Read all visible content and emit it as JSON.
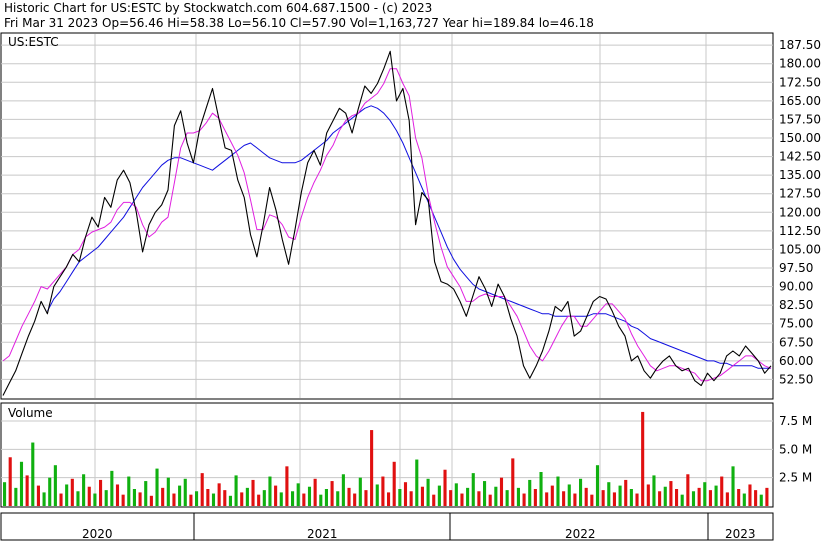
{
  "header": {
    "line1": "Historic Chart for US:ESTC by Stockwatch.com 604.687.1500 - (c) 2023",
    "line2": "Fri Mar 31 2023   Op=56.46  Hi=58.38  Lo=56.10  Cl=57.90  Vol=1,163,727   Year hi=189.84  lo=46.18"
  },
  "chart_data": [
    {
      "type": "line",
      "panel": "price",
      "symbol_label": "US:ESTC",
      "ylim": [
        45,
        192
      ],
      "y_ticks": [
        "187.50",
        "180.00",
        "172.50",
        "165.00",
        "157.50",
        "150.00",
        "142.50",
        "135.00",
        "127.50",
        "120.00",
        "112.50",
        "105.00",
        "97.50",
        "90.00",
        "82.50",
        "75.00",
        "67.50",
        "60.00",
        "52.50"
      ],
      "x_ticks": [
        "2020",
        "2021",
        "2022",
        "2023"
      ],
      "grid": true,
      "colors": {
        "price": "#000000",
        "ma_short": "#e020e0",
        "ma_long": "#1010e0",
        "grid": "#c8c8c8"
      },
      "series": [
        {
          "values": [
            46,
            51,
            56,
            63,
            70,
            76,
            84,
            79,
            90,
            94,
            98,
            103,
            100,
            110,
            118,
            114,
            126,
            122,
            133,
            137,
            132,
            120,
            104,
            115,
            120,
            123,
            129,
            155,
            161,
            148,
            140,
            154,
            162,
            170,
            158,
            146,
            145,
            133,
            126,
            111,
            102,
            115,
            130,
            121,
            109,
            99,
            113,
            128,
            140,
            145,
            139,
            152,
            157,
            162,
            160,
            152,
            162,
            171,
            168,
            172,
            178,
            185,
            165,
            170,
            157,
            115,
            128,
            125,
            100,
            92,
            91,
            89,
            84,
            78,
            86,
            94,
            89,
            82,
            91,
            86,
            77,
            70,
            58,
            53,
            58,
            64,
            72,
            82,
            80,
            84,
            70,
            72,
            78,
            84,
            86,
            85,
            80,
            74,
            70,
            60,
            62,
            56,
            53,
            57,
            60,
            62,
            58,
            56,
            57,
            52,
            50,
            55,
            52,
            55,
            62,
            64,
            62,
            66,
            63,
            60,
            55,
            58
          ]
        },
        {
          "values": [
            60,
            62,
            68,
            74,
            79,
            84,
            90,
            89,
            92,
            95,
            98,
            103,
            105,
            110,
            112,
            113,
            114,
            116,
            121,
            124,
            124,
            122,
            115,
            110,
            112,
            116,
            118,
            132,
            146,
            152,
            152,
            153,
            156,
            160,
            158,
            153,
            148,
            143,
            136,
            125,
            113,
            113,
            119,
            118,
            115,
            110,
            109,
            118,
            126,
            132,
            137,
            143,
            147,
            153,
            157,
            159,
            160,
            164,
            166,
            168,
            172,
            178,
            178,
            172,
            167,
            150,
            142,
            127,
            116,
            106,
            98,
            94,
            90,
            84,
            84,
            86,
            87,
            86,
            86,
            86,
            82,
            78,
            72,
            66,
            62,
            60,
            64,
            69,
            74,
            78,
            78,
            74,
            74,
            77,
            80,
            83,
            83,
            80,
            77,
            71,
            66,
            62,
            58,
            56,
            57,
            58,
            58,
            57,
            56,
            55,
            52,
            52,
            53,
            54,
            56,
            58,
            60,
            62,
            62,
            60,
            58,
            57
          ]
        },
        {
          "values": [
            null,
            null,
            null,
            null,
            null,
            null,
            null,
            80,
            85,
            88,
            92,
            96,
            100,
            102,
            104,
            106,
            109,
            112,
            115,
            118,
            122,
            126,
            130,
            133,
            136,
            139,
            141,
            142,
            142,
            141,
            140,
            139,
            138,
            137,
            139,
            141,
            143,
            145,
            147,
            148,
            146,
            144,
            142,
            141,
            140,
            140,
            140,
            141,
            143,
            145,
            147,
            149,
            152,
            154,
            156,
            158,
            160,
            162,
            163,
            162,
            160,
            157,
            153,
            148,
            142,
            136,
            130,
            124,
            118,
            112,
            106,
            101,
            97,
            94,
            91,
            89,
            88,
            87,
            86,
            85,
            84,
            83,
            82,
            81,
            80,
            79,
            79,
            78,
            78,
            78,
            78,
            78,
            78,
            79,
            79,
            79,
            78,
            77,
            76,
            74,
            73,
            71,
            69,
            68,
            67,
            66,
            65,
            64,
            63,
            62,
            61,
            60,
            60,
            59,
            59,
            58,
            58,
            58,
            58,
            57,
            57,
            57
          ]
        }
      ]
    },
    {
      "type": "bar",
      "panel": "volume",
      "title": "Volume",
      "y_ticks": [
        "7.5 M",
        "5.0 M",
        "2.5 M"
      ],
      "ylim": [
        0,
        9000000
      ],
      "colors": {
        "up": "#10b010",
        "down": "#e01010"
      },
      "values": [
        2.1,
        4.3,
        1.6,
        3.9,
        2.7,
        5.6,
        1.8,
        1.2,
        2.5,
        3.6,
        1.1,
        1.9,
        2.4,
        1.3,
        2.8,
        1.7,
        1.1,
        2.3,
        1.4,
        3.1,
        1.9,
        1.0,
        2.6,
        1.5,
        1.2,
        2.2,
        0.9,
        3.3,
        1.6,
        2.5,
        1.1,
        1.8,
        2.4,
        1.0,
        1.3,
        2.9,
        1.5,
        1.1,
        2.0,
        1.4,
        0.9,
        2.7,
        1.2,
        1.6,
        2.3,
        1.0,
        1.4,
        2.6,
        1.8,
        1.2,
        3.5,
        1.3,
        2.0,
        1.1,
        1.7,
        2.4,
        1.0,
        1.5,
        2.2,
        1.3,
        2.8,
        1.6,
        1.1,
        2.5,
        1.4,
        6.7,
        1.9,
        2.6,
        1.2,
        3.9,
        1.5,
        2.1,
        1.3,
        4.1,
        1.7,
        2.4,
        1.0,
        1.8,
        3.2,
        1.4,
        2.0,
        1.1,
        1.6,
        2.9,
        1.3,
        2.2,
        1.0,
        1.7,
        2.5,
        1.4,
        4.2,
        1.6,
        1.1,
        2.3,
        1.5,
        3.0,
        1.2,
        1.8,
        2.6,
        1.3,
        1.9,
        1.1,
        2.4,
        1.6,
        1.0,
        3.6,
        1.4,
        2.1,
        1.2,
        1.8,
        2.3,
        1.5,
        1.1,
        8.3,
        1.9,
        2.7,
        1.3,
        1.7,
        2.2,
        1.5,
        1.0,
        2.8,
        1.3,
        1.6,
        2.1,
        1.4,
        1.8,
        2.6,
        1.2,
        3.5,
        1.5,
        1.1,
        1.9,
        1.4,
        1.0,
        1.6
      ],
      "values_unit": "M",
      "up_days": [
        1,
        0,
        1,
        1,
        0,
        1,
        0,
        1,
        1,
        1,
        0,
        1,
        0,
        1,
        1,
        0,
        1,
        0,
        1,
        1,
        0,
        0,
        1,
        1,
        0,
        1,
        0,
        1,
        0,
        1,
        0,
        1,
        1,
        0,
        1,
        0,
        0,
        1,
        0,
        0,
        1,
        1,
        0,
        1,
        0,
        0,
        1,
        1,
        0,
        1,
        0,
        1,
        1,
        0,
        1,
        0,
        1,
        1,
        0,
        1,
        1,
        0,
        0,
        1,
        0,
        0,
        1,
        0,
        0,
        0,
        1,
        0,
        0,
        1,
        0,
        1,
        0,
        1,
        0,
        0,
        1,
        0,
        1,
        1,
        0,
        1,
        0,
        1,
        0,
        1,
        0,
        1,
        0,
        1,
        0,
        1,
        0,
        0,
        1,
        0,
        1,
        0,
        1,
        0,
        0,
        1,
        0,
        1,
        0,
        1,
        0,
        1,
        0,
        0,
        0,
        1,
        0,
        1,
        0,
        0,
        1,
        0,
        1,
        0,
        1,
        0,
        1,
        0,
        0,
        1,
        0,
        1,
        0,
        0,
        1,
        0
      ]
    }
  ]
}
